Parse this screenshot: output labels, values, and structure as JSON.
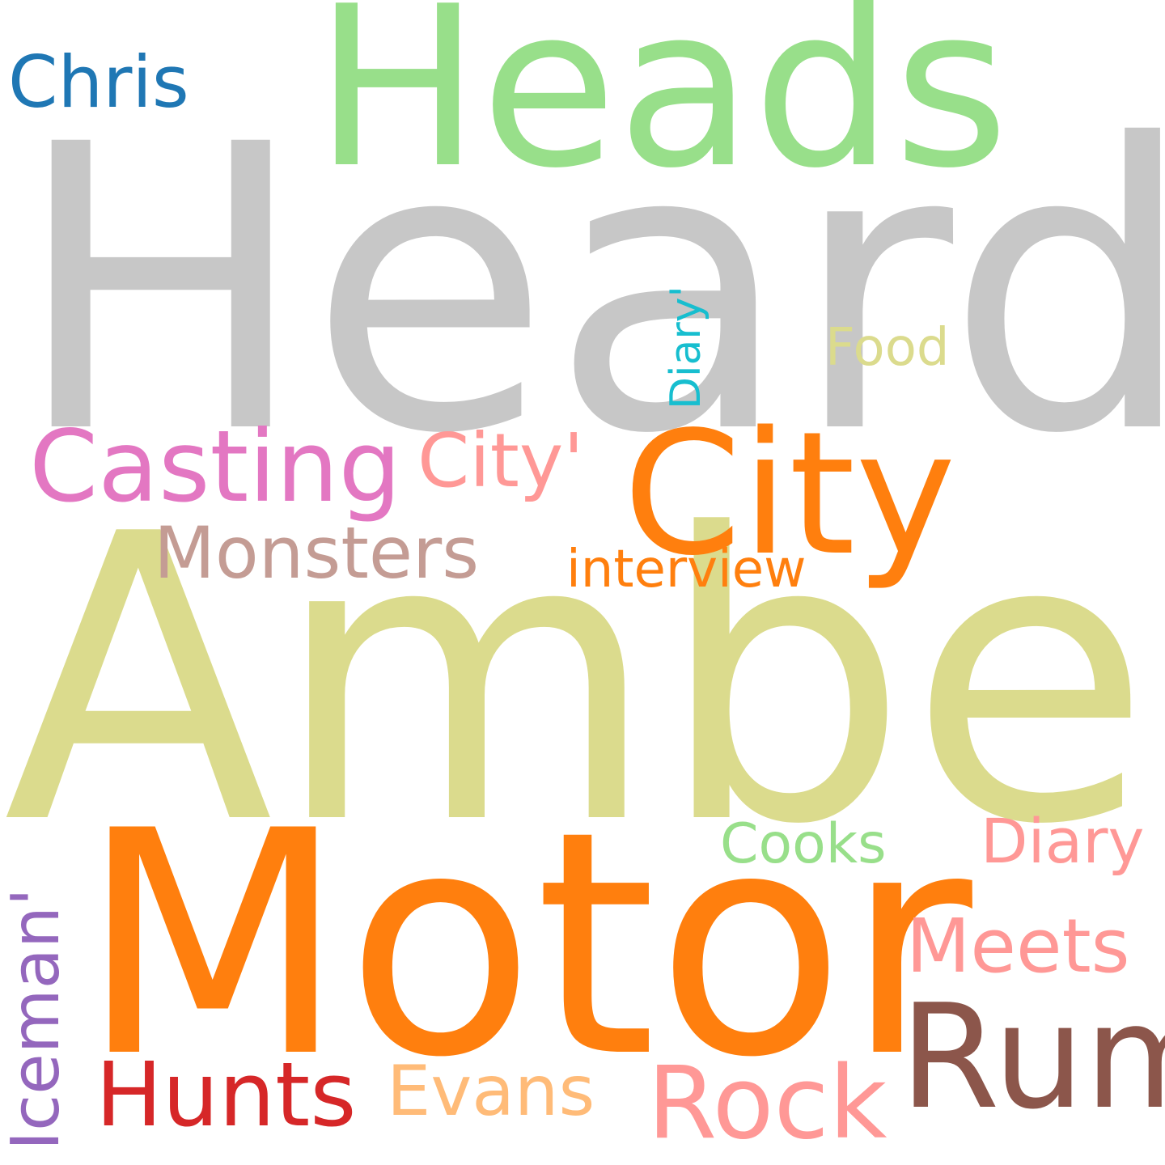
{
  "words": [
    {
      "text": "Heard",
      "color": "#c7c7c7",
      "orientation": "horizontal"
    },
    {
      "text": "Amber",
      "color": "#dbdb8d",
      "orientation": "horizontal"
    },
    {
      "text": "Motor",
      "color": "#ff7f0e",
      "orientation": "horizontal"
    },
    {
      "text": "Heads",
      "color": "#98df8a",
      "orientation": "horizontal"
    },
    {
      "text": "City",
      "color": "#ff7f0e",
      "orientation": "horizontal"
    },
    {
      "text": "Rum",
      "color": "#8c564b",
      "orientation": "horizontal"
    },
    {
      "text": "Casting",
      "color": "#e377c2",
      "orientation": "horizontal"
    },
    {
      "text": "Rock",
      "color": "#ff9896",
      "orientation": "horizontal"
    },
    {
      "text": "Hunts",
      "color": "#d62728",
      "orientation": "horizontal"
    },
    {
      "text": "Monsters",
      "color": "#c49c94",
      "orientation": "horizontal"
    },
    {
      "text": "Iceman'",
      "color": "#9467bd",
      "orientation": "vertical"
    },
    {
      "text": "Meets",
      "color": "#ff9896",
      "orientation": "horizontal"
    },
    {
      "text": "City'",
      "color": "#ff9896",
      "orientation": "horizontal"
    },
    {
      "text": "Evans",
      "color": "#ffbb78",
      "orientation": "horizontal"
    },
    {
      "text": "Chris",
      "color": "#1f77b4",
      "orientation": "horizontal"
    },
    {
      "text": "Diary",
      "color": "#ff9896",
      "orientation": "horizontal"
    },
    {
      "text": "Cooks",
      "color": "#98df8a",
      "orientation": "horizontal"
    },
    {
      "text": "interview",
      "color": "#ff7f0e",
      "orientation": "horizontal"
    },
    {
      "text": "Food",
      "color": "#dbdb8d",
      "orientation": "horizontal"
    },
    {
      "text": "Diary'",
      "color": "#17becf",
      "orientation": "vertical"
    }
  ]
}
